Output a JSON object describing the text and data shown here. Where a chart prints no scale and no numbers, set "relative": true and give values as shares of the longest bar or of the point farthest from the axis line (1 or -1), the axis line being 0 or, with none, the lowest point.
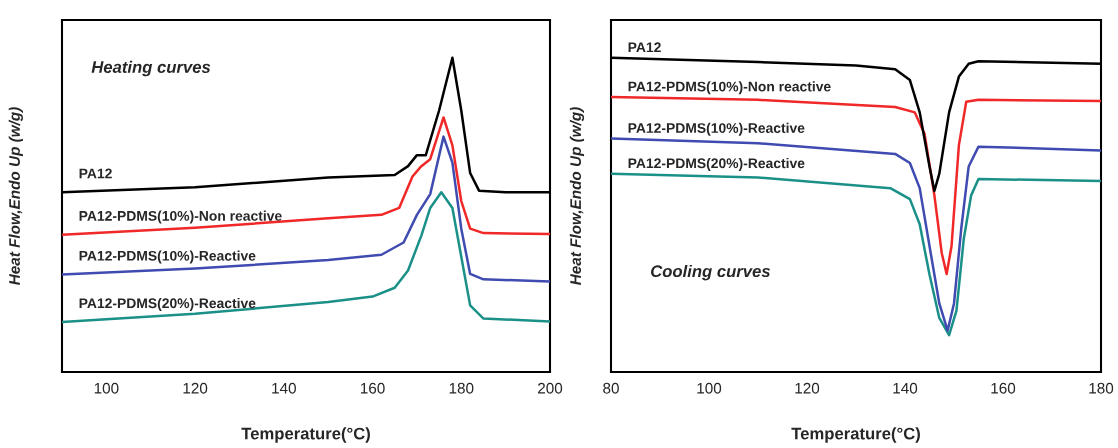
{
  "chart_data": [
    {
      "type": "line",
      "relative": true,
      "xlabel": "Temperature(°C)",
      "ylabel": "Heat Flow,Endo Up (w/g)",
      "annotations": [
        "Heating curves"
      ],
      "xlim": [
        90,
        200
      ],
      "xticks": [
        100,
        120,
        140,
        160,
        180,
        200
      ],
      "tick_labels": "x",
      "grid": false,
      "legend": false,
      "series": [
        {
          "name": "PA12",
          "color": "#000000",
          "x": [
            90,
            120,
            150,
            165,
            168,
            170,
            172,
            175,
            178,
            180,
            182,
            184,
            190,
            200
          ],
          "values": [
            0.572,
            0.588,
            0.619,
            0.627,
            0.655,
            0.69,
            0.69,
            0.832,
            1.0,
            0.832,
            0.633,
            0.577,
            0.572,
            0.572
          ]
        },
        {
          "name": "PA12-PDMS(10%)-Non reactive",
          "color": "#f02828",
          "x": [
            90,
            120,
            150,
            162,
            166,
            169,
            171,
            173,
            176,
            178,
            180,
            182,
            185,
            200
          ],
          "values": [
            0.437,
            0.459,
            0.489,
            0.5,
            0.522,
            0.622,
            0.655,
            0.677,
            0.81,
            0.721,
            0.544,
            0.456,
            0.442,
            0.439
          ]
        },
        {
          "name": "PA12-PDMS(10%)-Reactive",
          "color": "#3f4bb0",
          "x": [
            90,
            120,
            150,
            162,
            167,
            170,
            173,
            176,
            178,
            180,
            182,
            185,
            200
          ],
          "values": [
            0.31,
            0.329,
            0.356,
            0.373,
            0.412,
            0.5,
            0.566,
            0.749,
            0.666,
            0.456,
            0.312,
            0.295,
            0.288
          ]
        },
        {
          "name": "PA12-PDMS(20%)-Reactive",
          "color": "#1a9088",
          "x": [
            90,
            120,
            150,
            160,
            165,
            168,
            171,
            173,
            175.5,
            178,
            180,
            182,
            185,
            200
          ],
          "values": [
            0.159,
            0.185,
            0.223,
            0.24,
            0.268,
            0.323,
            0.434,
            0.522,
            0.572,
            0.522,
            0.367,
            0.212,
            0.17,
            0.161
          ]
        }
      ]
    },
    {
      "type": "line",
      "relative": true,
      "xlabel": "Temperature(°C)",
      "ylabel": "Heat Flow,Endo Up (w/g)",
      "annotations": [
        "Cooling curves"
      ],
      "xlim": [
        80,
        180
      ],
      "xticks": [
        80,
        100,
        120,
        140,
        160,
        180
      ],
      "tick_labels": "x",
      "grid": false,
      "legend": false,
      "series": [
        {
          "name": "PA12",
          "color": "#000000",
          "x": [
            80,
            110,
            130,
            138,
            141,
            143,
            145,
            146,
            147,
            149,
            151,
            153,
            155,
            180
          ],
          "values": [
            1.0,
            0.986,
            0.975,
            0.963,
            0.929,
            0.826,
            0.654,
            0.576,
            0.631,
            0.826,
            0.94,
            0.981,
            0.989,
            0.981
          ]
        },
        {
          "name": "PA12-PDMS(10%)-Non reactive",
          "color": "#f02828",
          "x": [
            80,
            110,
            138,
            142,
            144,
            146,
            147.5,
            148.5,
            149.5,
            151,
            152.5,
            155,
            180
          ],
          "values": [
            0.875,
            0.866,
            0.843,
            0.826,
            0.757,
            0.562,
            0.378,
            0.312,
            0.401,
            0.722,
            0.86,
            0.866,
            0.862
          ]
        },
        {
          "name": "PA12-PDMS(10%)-Reactive",
          "color": "#3f4bb0",
          "x": [
            80,
            110,
            138,
            141,
            143,
            145,
            147,
            148.7,
            150,
            151.5,
            153,
            155,
            180
          ],
          "values": [
            0.743,
            0.728,
            0.694,
            0.665,
            0.585,
            0.401,
            0.218,
            0.132,
            0.218,
            0.459,
            0.654,
            0.717,
            0.705
          ]
        },
        {
          "name": "PA12-PDMS(20%)-Reactive",
          "color": "#1a9088",
          "x": [
            80,
            110,
            137,
            141,
            143,
            145,
            147,
            149,
            150.5,
            152,
            153.5,
            155,
            180
          ],
          "values": [
            0.631,
            0.619,
            0.585,
            0.55,
            0.47,
            0.31,
            0.172,
            0.117,
            0.195,
            0.424,
            0.562,
            0.614,
            0.608
          ]
        }
      ]
    }
  ]
}
